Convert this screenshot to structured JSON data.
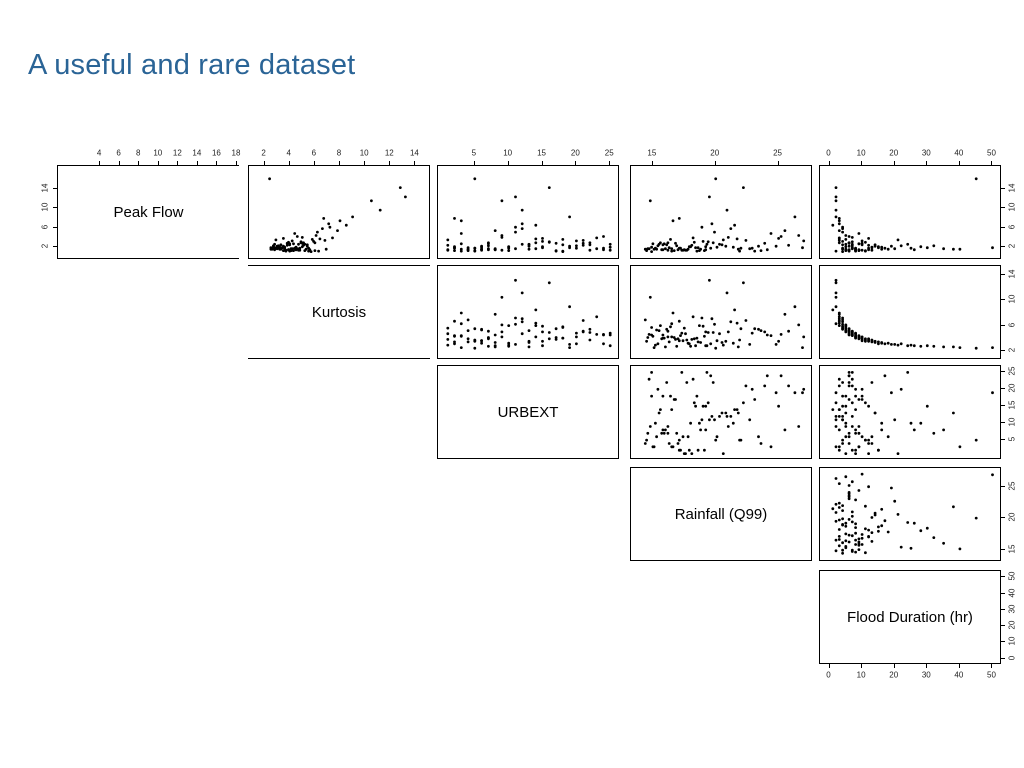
{
  "slide": {
    "title": "A useful and rare dataset"
  },
  "colors": {
    "title": "#2a6496",
    "point": "#000000",
    "axis": "#000000"
  },
  "chart_data": {
    "type": "scatter",
    "subtype": "scatterplot-matrix-upper-triangle",
    "title": "A useful and rare dataset",
    "legend": "none",
    "grid": false,
    "variables": [
      {
        "name": "peak_flow",
        "label": "Peak Flow",
        "range": [
          0,
          18
        ],
        "top_ticks": [
          4,
          6,
          8,
          10,
          12,
          14,
          16,
          18
        ],
        "side_ticks": [
          2,
          6,
          10,
          14
        ]
      },
      {
        "name": "kurtosis",
        "label": "Kurtosis",
        "range": [
          1,
          15
        ],
        "top_ticks": [
          2,
          4,
          6,
          8,
          10,
          12,
          14
        ],
        "side_ticks": [
          2,
          6,
          10,
          14
        ]
      },
      {
        "name": "urbext",
        "label": "URBEXT",
        "range": [
          0,
          26
        ],
        "top_ticks": [
          5,
          10,
          15,
          20,
          25
        ],
        "side_ticks": [
          5,
          10,
          15,
          20,
          25
        ]
      },
      {
        "name": "rainfall_q99",
        "label": "Rainfall (Q99)",
        "range": [
          13.5,
          27.5
        ],
        "top_ticks": [
          15,
          20,
          25
        ],
        "side_ticks": [
          15,
          20,
          25
        ]
      },
      {
        "name": "flood_duration",
        "label": "Flood Duration (hr)",
        "range": [
          -2,
          52
        ],
        "top_ticks": [
          0,
          10,
          20,
          30,
          40,
          50
        ],
        "side_ticks": [
          0,
          10,
          20,
          30,
          40,
          50
        ],
        "bottom_ticks": [
          0,
          10,
          20,
          30,
          40,
          50
        ]
      }
    ],
    "observations": {
      "peak_flow": [
        1.2,
        2.1,
        1.5,
        3.4,
        1.8,
        2.6,
        1.1,
        1.9,
        4.2,
        1.4,
        6.5,
        1.6,
        2.3,
        5.1,
        1.3,
        2.8,
        3.9,
        1.7,
        2.2,
        1.5,
        8.2,
        1.8,
        3.1,
        1.2,
        2.5,
        1.6,
        4.8,
        2.9,
        1.4,
        2.0,
        1.7,
        3.6,
        1.3,
        11.5,
        1.9,
        2.4,
        1.5,
        5.8,
        2.7,
        1.8,
        1.2,
        7.4,
        2.1,
        3.3,
        1.6,
        2.5,
        1.4,
        14.2,
        1.7,
        2.9,
        1.3,
        6.1,
        2.2,
        1.8,
        3.7,
        1.5,
        2.6,
        4.4,
        1.9,
        1.2,
        9.6,
        1.6,
        2.8,
        1.4,
        3.2,
        2.0,
        1.7,
        2.4,
        5.4,
        1.3,
        16.0,
        2.6,
        1.8,
        2.1,
        12.3,
        1.5,
        2.3,
        3.0,
        1.6,
        4.0,
        1.9,
        2.7,
        6.8,
        1.4,
        2.2,
        1.7,
        3.5,
        1.3,
        2.5,
        1.8,
        2.0,
        1.5,
        3.8,
        7.9,
        1.6,
        2.9
      ],
      "kurtosis": [
        6.3,
        5.0,
        4.5,
        6.8,
        3.6,
        4.7,
        5.7,
        3.4,
        4.6,
        4.2,
        8.5,
        3.2,
        3.1,
        6.2,
        5.2,
        3.8,
        7.4,
        4.1,
        3.5,
        5.6,
        9.0,
        2.9,
        4.9,
        3.7,
        5.4,
        3.3,
        4.4,
        6.0,
        4.8,
        3.6,
        3.0,
        5.8,
        4.3,
        10.5,
        2.8,
        5.1,
        3.9,
        6.6,
        4.0,
        3.1,
        5.5,
        8.0,
        2.7,
        4.2,
        5.3,
        3.3,
        4.7,
        12.8,
        2.6,
        4.9,
        3.5,
        7.2,
        3.0,
        4.4,
        6.4,
        3.9,
        2.8,
        6.1,
        3.4,
        4.0,
        11.2,
        2.5,
        5.0,
        3.6,
        5.9,
        3.2,
        4.6,
        3.8,
        7.8,
        4.1,
        2.4,
        5.2,
        4.8,
        3.1,
        13.2,
        4.5,
        2.7,
        3.9,
        6.9,
        5.0,
        2.5,
        4.3,
        7.1,
        3.7,
        5.4,
        4.2,
        2.9,
        6.0,
        4.0,
        5.5,
        4.5,
        2.8,
        3.5,
        6.7,
        2.6,
        5.1
      ],
      "urbext": [
        3,
        15,
        8,
        21,
        5,
        12,
        18,
        2,
        24,
        9,
        14,
        6,
        20,
        11,
        4,
        17,
        23,
        7,
        13,
        1,
        19,
        10,
        16,
        5,
        22,
        8,
        3,
        14,
        25,
        6,
        11,
        18,
        2,
        9,
        15,
        21,
        4,
        12,
        7,
        24,
        17,
        3,
        10,
        20,
        6,
        13,
        1,
        16,
        8,
        22,
        5,
        11,
        19,
        2,
        14,
        7,
        25,
        9,
        4,
        18,
        12,
        3,
        21,
        6,
        15,
        10,
        23,
        1,
        8,
        17,
        5,
        13,
        20,
        2,
        11,
        24,
        7,
        16,
        4,
        9,
        19,
        3,
        12,
        22,
        6,
        14,
        1,
        10,
        18,
        5,
        25,
        8,
        15,
        2,
        13,
        7
      ],
      "rainfall_q99": [
        16.5,
        19.2,
        15.8,
        22.4,
        17.1,
        20.3,
        14.9,
        18.6,
        25.2,
        16.2,
        21.5,
        17.8,
        15.4,
        19.9,
        23.6,
        16.8,
        18.2,
        14.6,
        20.8,
        17.5,
        26.3,
        15.2,
        19.4,
        21.9,
        16.1,
        18.8,
        24.4,
        15.6,
        17.3,
        20.1,
        22.7,
        16.4,
        19.1,
        14.8,
        18.4,
        25.8,
        17.0,
        21.2,
        15.9,
        19.6,
        23.1,
        16.6,
        18.0,
        27.0,
        15.3,
        20.5,
        17.6,
        22.2,
        16.0,
        19.8,
        14.5,
        18.9,
        24.8,
        17.2,
        21.7,
        15.7,
        19.3,
        26.6,
        16.3,
        18.5,
        20.9,
        15.1,
        23.9,
        17.4,
        19.0,
        21.4,
        14.7,
        18.1,
        25.5,
        16.7,
        20.0,
        15.5,
        22.9,
        17.9,
        19.5,
        24.1,
        16.9,
        18.3,
        14.4,
        21.0,
        26.9,
        15.0,
        19.7,
        17.7,
        23.4,
        16.5,
        20.6,
        18.7,
        15.8,
        22.0,
        14.9,
        19.2,
        25.0,
        17.1,
        21.8,
        16.2
      ],
      "flood_duration": [
        2,
        5,
        8,
        3,
        12,
        7,
        4,
        15,
        6,
        9,
        1,
        18,
        22,
        4,
        6,
        10,
        3,
        8,
        14,
        5,
        2,
        25,
        7,
        11,
        4,
        16,
        9,
        3,
        6,
        13,
        20,
        5,
        8,
        2,
        30,
        7,
        12,
        4,
        9,
        17,
        6,
        3,
        28,
        10,
        5,
        14,
        8,
        2,
        35,
        6,
        11,
        4,
        19,
        7,
        3,
        9,
        24,
        5,
        13,
        8,
        2,
        40,
        6,
        10,
        4,
        16,
        7,
        12,
        3,
        9,
        45,
        5,
        8,
        15,
        2,
        6,
        32,
        11,
        4,
        7,
        50,
        9,
        3,
        13,
        6,
        8,
        21,
        5,
        10,
        4,
        7,
        26,
        12,
        3,
        38,
        6
      ]
    }
  }
}
